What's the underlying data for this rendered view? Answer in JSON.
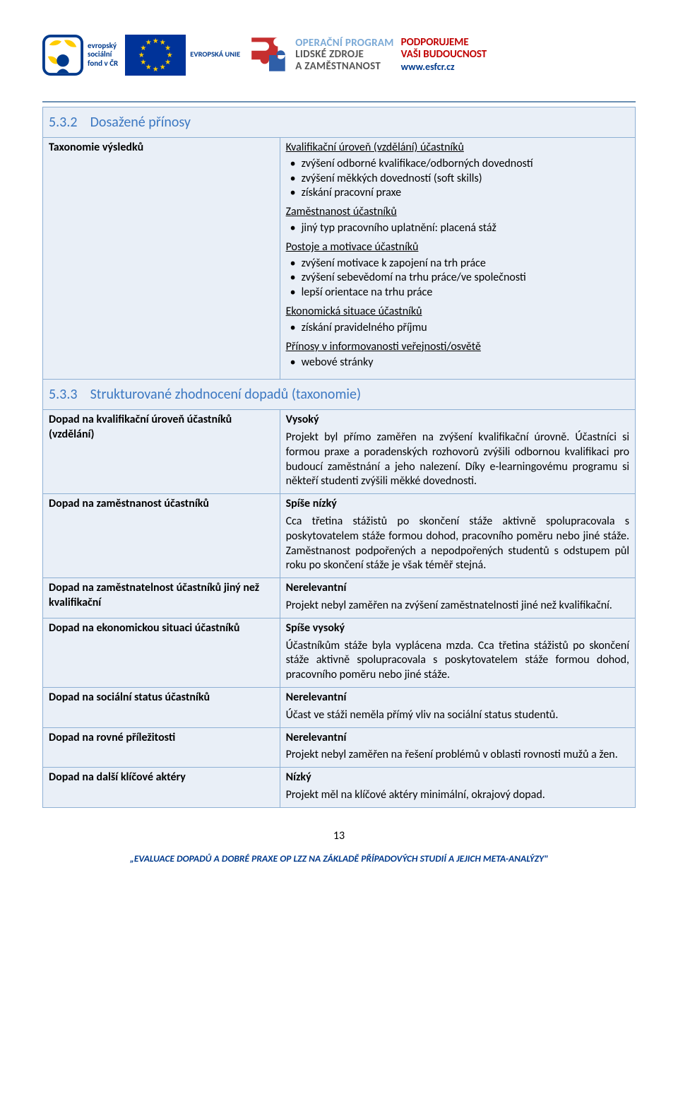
{
  "colors": {
    "heading_blue": "#3c78c2",
    "cell_bg": "#e9eff7",
    "cell_border": "#8eb0d4",
    "header_rule": "#6b8fb3",
    "support_red": "#c00000",
    "dark_blue": "#003a8c",
    "op_gray": "#555555",
    "op_lightblue": "#7aa9d6"
  },
  "header": {
    "esf_text1": "evropský",
    "esf_text2": "sociální",
    "esf_text3": "fond v ČR",
    "eu_text": "EVROPSKÁ UNIE",
    "op_line1": "OPERAČNÍ PROGRAM",
    "op_line2": "LIDSKÉ ZDROJE",
    "op_line3": "A ZAMĚSTNANOST",
    "support_line1": "PODPORUJEME",
    "support_line2": "VAŠI BUDOUCNOST",
    "support_link": "www.esfcr.cz"
  },
  "section532": {
    "number": "5.3.2",
    "title": "Dosažené přínosy",
    "taxonomy_label": "Taxonomie výsledků",
    "groups": [
      {
        "heading": "Kvalifikační úroveň (vzdělání) účastníků",
        "items": [
          "zvýšení odborné kvalifikace/odborných dovedností",
          "zvýšení měkkých dovedností (soft skills)",
          "získání pracovní praxe"
        ]
      },
      {
        "heading": "Zaměstnanost účastníků",
        "items": [
          "jiný typ pracovního uplatnění: placená stáž"
        ]
      },
      {
        "heading": "Postoje a motivace účastníků",
        "items": [
          "zvýšení motivace k zapojení na trh práce",
          "zvýšení sebevědomí na trhu práce/ve společnosti",
          "lepší orientace na trhu práce"
        ]
      },
      {
        "heading": "Ekonomická situace účastníků",
        "items": [
          "získání pravidelného příjmu"
        ]
      },
      {
        "heading": "Přínosy v informovanosti veřejnosti/osvětě",
        "items": [
          "webové stránky"
        ]
      }
    ]
  },
  "section533": {
    "number": "5.3.3",
    "title": "Strukturované zhodnocení dopadů (taxonomie)",
    "rows": [
      {
        "label": "Dopad na kvalifikační úroveň účastníků (vzdělání)",
        "rating": "Vysoký",
        "text": "Projekt byl přímo zaměřen na zvýšení kvalifikační úrovně. Účastníci si formou praxe a poradenských rozhovorů zvýšili odbornou kvalifikaci pro budoucí zaměstnání a jeho nalezení. Díky e-learningovému programu si někteří studenti zvýšili měkké dovednosti."
      },
      {
        "label": "Dopad na zaměstnanost účastníků",
        "rating": "Spíše nízký",
        "text": "Cca třetina stážistů po skončení stáže aktivně spolupracovala s poskytovatelem stáže formou dohod, pracovního poměru nebo jiné stáže. Zaměstnanost podpořených a nepodpořených studentů s odstupem půl roku po skončení stáže je však téměř stejná."
      },
      {
        "label": "Dopad na zaměstnatelnost účastníků jiný než kvalifikační",
        "rating": "Nerelevantní",
        "text": "Projekt nebyl zaměřen na zvýšení zaměstnatelnosti jiné než kvalifikační."
      },
      {
        "label": "Dopad na ekonomickou situaci účastníků",
        "rating": "Spíše vysoký",
        "text": "Účastníkům stáže byla vyplácena mzda. Cca třetina stážistů po skončení stáže aktivně spolupracovala s poskytovatelem stáže formou dohod, pracovního poměru nebo jiné stáže."
      },
      {
        "label": "Dopad na sociální status účastníků",
        "rating": "Nerelevantní",
        "text": "Účast ve stáži neměla přímý vliv na sociální status studentů."
      },
      {
        "label": "Dopad na rovné příležitosti",
        "rating": "Nerelevantní",
        "text": "Projekt nebyl zaměřen na řešení problémů v oblasti rovnosti mužů a žen."
      },
      {
        "label": "Dopad na další klíčové aktéry",
        "rating": "Nízký",
        "text": "Projekt měl na klíčové aktéry minimální, okrajový dopad."
      }
    ]
  },
  "footer": {
    "page_number": "13",
    "caption": "„EVALUACE DOPADŮ A DOBRÉ PRAXE OP LZZ NA ZÁKLADĚ PŘÍPADOVÝCH STUDIÍ A JEJICH META-ANALÝZY\""
  }
}
